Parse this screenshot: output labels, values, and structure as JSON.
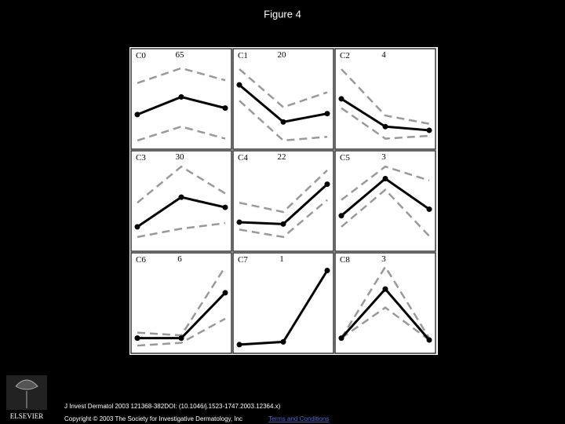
{
  "title": "Figure 4",
  "figure": {
    "ylim": [
      0,
      100
    ],
    "panels": [
      {
        "label": "C0",
        "count": 65,
        "mean": [
          34,
          53,
          41
        ],
        "upper": [
          68,
          84,
          71
        ],
        "lower": [
          6,
          21,
          8
        ]
      },
      {
        "label": "C1",
        "count": 20,
        "mean": [
          66,
          26,
          35
        ],
        "upper": [
          83,
          42,
          58
        ],
        "lower": [
          49,
          6,
          10
        ]
      },
      {
        "label": "C2",
        "count": 4,
        "mean": [
          51,
          21,
          17
        ],
        "upper": [
          83,
          33,
          24
        ],
        "lower": [
          41,
          8,
          11
        ]
      },
      {
        "label": "C3",
        "count": 30,
        "mean": [
          23,
          55,
          44
        ],
        "upper": [
          49,
          88,
          59
        ],
        "lower": [
          12,
          21,
          27
        ]
      },
      {
        "label": "C4",
        "count": 22,
        "mean": [
          28,
          26,
          69
        ],
        "upper": [
          49,
          39,
          84
        ],
        "lower": [
          20,
          12,
          52
        ]
      },
      {
        "label": "C5",
        "count": 3,
        "mean": [
          35,
          75,
          42
        ],
        "upper": [
          52,
          88,
          73
        ],
        "lower": [
          23,
          63,
          13
        ]
      },
      {
        "label": "C6",
        "count": 6,
        "mean": [
          13,
          13,
          62
        ],
        "upper": [
          19,
          16,
          90
        ],
        "lower": [
          5,
          8,
          34
        ]
      },
      {
        "label": "C7",
        "count": 1,
        "mean": [
          6,
          9,
          86
        ]
      },
      {
        "label": "C8",
        "count": 3,
        "mean": [
          13,
          66,
          11
        ],
        "upper": [
          13,
          90,
          13
        ],
        "lower": [
          13,
          46,
          11
        ]
      }
    ]
  },
  "caption": {
    "citation": "J Invest Dermatol 2003 121368-382DOI: (10.1046/j.1523-1747.2003.12364.x)",
    "copyright": "Copyright © 2003 The Society for Investigative Dermatology, Inc",
    "link": "Terms and Conditions"
  },
  "publisher": "ELSEVIER"
}
